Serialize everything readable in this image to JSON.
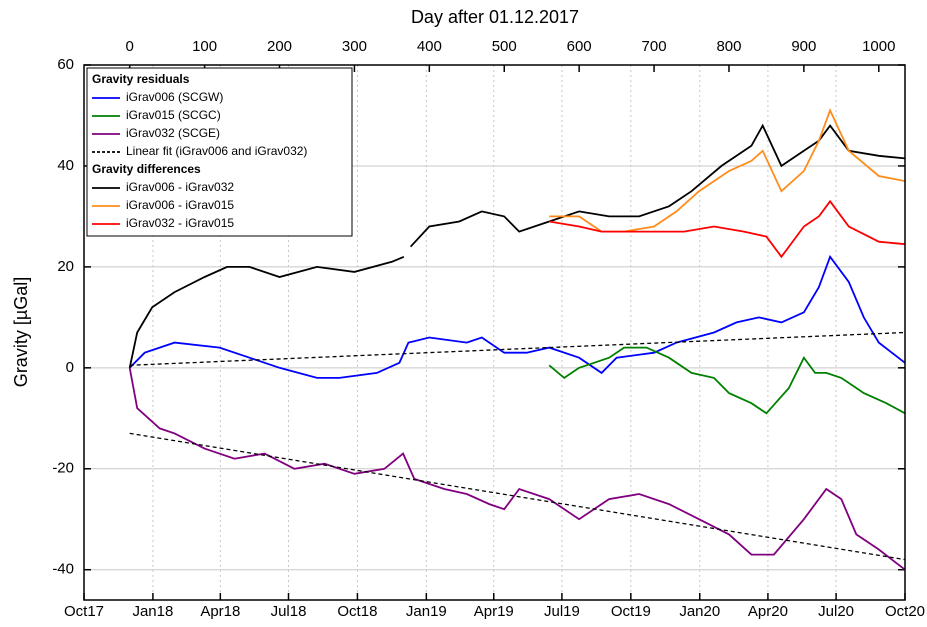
{
  "chart_data": {
    "type": "line",
    "x2_label": "Day after 01.12.2017",
    "y_label": "Gravity [µGal]",
    "xlim": [
      -61,
      1035
    ],
    "xticks": [
      {
        "value": -61,
        "label": "Oct17"
      },
      {
        "value": 31,
        "label": "Jan18"
      },
      {
        "value": 121,
        "label": "Apr18"
      },
      {
        "value": 212,
        "label": "Jul18"
      },
      {
        "value": 304,
        "label": "Oct18"
      },
      {
        "value": 396,
        "label": "Jan19"
      },
      {
        "value": 486,
        "label": "Apr19"
      },
      {
        "value": 577,
        "label": "Jul19"
      },
      {
        "value": 669,
        "label": "Oct19"
      },
      {
        "value": 761,
        "label": "Jan20"
      },
      {
        "value": 852,
        "label": "Apr20"
      },
      {
        "value": 943,
        "label": "Jul20"
      },
      {
        "value": 1035,
        "label": "Oct20"
      }
    ],
    "x2ticks": [
      0,
      100,
      200,
      300,
      400,
      500,
      600,
      700,
      800,
      900,
      1000
    ],
    "ylim": [
      -46,
      60
    ],
    "yticks": [
      -40,
      -20,
      0,
      20,
      40,
      60
    ],
    "grid": true,
    "series_groups": [
      {
        "title": "Gravity residuals",
        "series": [
          {
            "name": "iGrav006 (SCGW)",
            "color": "#0000ff",
            "dashed": false,
            "x": [
              0,
              20,
              60,
              120,
              160,
              200,
              250,
              280,
              330,
              360,
              372,
              400,
              450,
              470,
              500,
              530,
              560,
              600,
              630,
              650,
              700,
              730,
              780,
              810,
              840,
              870,
              900,
              920,
              935,
              960,
              980,
              1000,
              1035
            ],
            "values": [
              0,
              3,
              5,
              4,
              2,
              0,
              -2,
              -2,
              -1,
              1,
              5,
              6,
              5,
              6,
              3,
              3,
              4,
              2,
              -1,
              2,
              3,
              5,
              7,
              9,
              10,
              9,
              11,
              16,
              22,
              17,
              10,
              5,
              1
            ]
          },
          {
            "name": "iGrav015 (SCGC)",
            "color": "#008000",
            "dashed": false,
            "x": [
              560,
              580,
              600,
              620,
              640,
              660,
              690,
              720,
              750,
              780,
              800,
              830,
              850,
              880,
              900,
              915,
              930,
              950,
              980,
              1010,
              1035
            ],
            "values": [
              0.5,
              -2,
              0,
              1,
              2,
              4,
              4,
              2,
              -1,
              -2,
              -5,
              -7,
              -9,
              -4,
              2,
              -1,
              -1,
              -2,
              -5,
              -7,
              -9
            ]
          },
          {
            "name": "iGrav032 (SCGE)",
            "color": "#800080",
            "dashed": false,
            "x": [
              0,
              10,
              40,
              60,
              100,
              140,
              180,
              220,
              260,
              300,
              340,
              365,
              380,
              420,
              450,
              480,
              500,
              520,
              560,
              600,
              640,
              680,
              720,
              760,
              800,
              830,
              860,
              900,
              930,
              950,
              970,
              1000,
              1035
            ],
            "values": [
              0,
              -8,
              -12,
              -13,
              -16,
              -18,
              -17,
              -20,
              -19,
              -21,
              -20,
              -17,
              -22,
              -24,
              -25,
              -27,
              -28,
              -24,
              -26,
              -30,
              -26,
              -25,
              -27,
              -30,
              -33,
              -37,
              -37,
              -30,
              -24,
              -26,
              -33,
              -36,
              -40
            ]
          },
          {
            "name": "Linear fit (iGrav006 and iGrav032)",
            "color": "#000000",
            "dashed": true,
            "x": [
              0,
              1035
            ],
            "values": [
              0.5,
              7
            ]
          },
          {
            "name": "",
            "color": "#000000",
            "dashed": true,
            "x": [
              0,
              1035
            ],
            "values": [
              -13,
              -38
            ]
          }
        ]
      },
      {
        "title": "Gravity differences",
        "series": [
          {
            "name": "iGrav006 - iGrav032",
            "color": "#000000",
            "dashed": false,
            "x": [
              0,
              10,
              30,
              60,
              100,
              130,
              160,
              200,
              250,
              300,
              350,
              366,
              370,
              375,
              400,
              440,
              470,
              500,
              520,
              560,
              600,
              640,
              680,
              720,
              750,
              790,
              830,
              845,
              870,
              900,
              920,
              935,
              960,
              1000,
              1035
            ],
            "values": [
              0,
              7,
              12,
              15,
              18,
              20,
              20,
              18,
              20,
              19,
              21,
              22,
              null,
              24,
              28,
              29,
              31,
              30,
              27,
              29,
              31,
              30,
              30,
              32,
              35,
              40,
              44,
              48,
              40,
              43,
              45,
              48,
              43,
              42,
              41.5
            ]
          },
          {
            "name": "iGrav006 - iGrav015",
            "color": "#ff8c1a",
            "dashed": false,
            "x": [
              560,
              600,
              630,
              660,
              700,
              730,
              760,
              800,
              830,
              845,
              870,
              900,
              920,
              935,
              960,
              1000,
              1035
            ],
            "values": [
              30,
              30,
              27,
              27,
              28,
              31,
              35,
              39,
              41,
              43,
              35,
              39,
              45,
              51,
              43,
              38,
              37
            ]
          },
          {
            "name": "iGrav032 - iGrav015",
            "color": "#ff0000",
            "dashed": false,
            "x": [
              560,
              600,
              630,
              660,
              700,
              740,
              780,
              820,
              850,
              870,
              900,
              920,
              935,
              960,
              1000,
              1035
            ],
            "values": [
              29,
              28,
              27,
              27,
              27,
              27,
              28,
              27,
              26,
              22,
              28,
              30,
              33,
              28,
              25,
              24.5
            ]
          }
        ]
      }
    ]
  }
}
